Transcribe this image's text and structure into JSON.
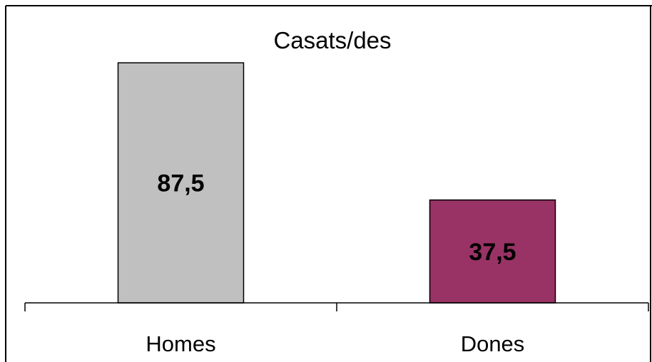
{
  "chart_data": {
    "type": "bar",
    "title": "Casats/des",
    "categories": [
      "Homes",
      "Dones"
    ],
    "values": [
      87.5,
      37.5
    ],
    "value_labels": [
      "87,5",
      "37,5"
    ],
    "colors": [
      "#c0c0c0",
      "#993366"
    ],
    "ylim": [
      0,
      100
    ],
    "grid": false,
    "legend": "none"
  }
}
